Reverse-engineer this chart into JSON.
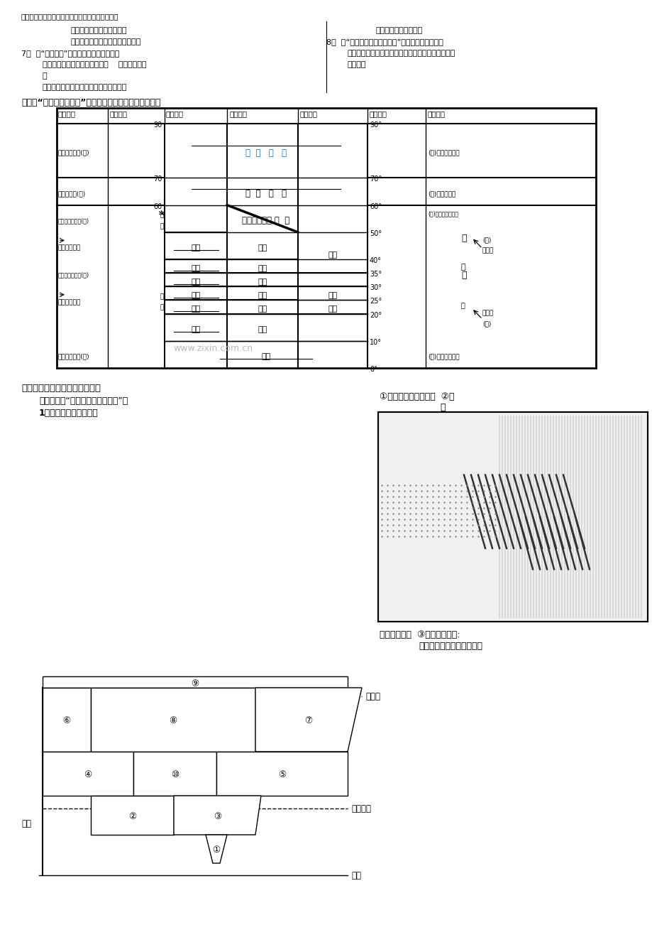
{
  "bg_color": "#ffffff",
  "watermark": "www.zixin.com.cn",
  "top_text": "此文档仅供收集于网络，如有侵权请联系网站删除",
  "sec3_title": "三、读“气候分布模式图”，将气候类型填在下图相应位置",
  "sec4_title": "四、世界各大洲气候类型分布图",
  "sec4_sub1": "（一）、读“亚洲气候类型分布图”：",
  "sec4_sub2": "1、亚洲气候的特点是："
}
